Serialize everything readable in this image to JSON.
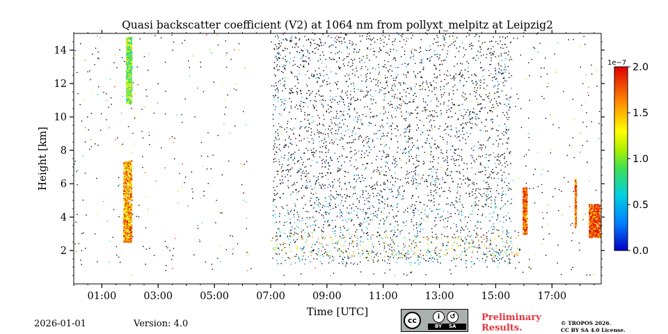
{
  "chart_data": {
    "type": "heatmap",
    "title": "Quasi backscatter coefficient (V2) at 1064 nm from pollyxt_melpitz at Leipzig2",
    "xlabel": "Time [UTC]",
    "ylabel": "Height [km]",
    "x_range_hours": [
      0.0,
      18.75
    ],
    "ylim": [
      0,
      15
    ],
    "x_tick_hours": [
      1,
      3,
      5,
      7,
      9,
      11,
      13,
      15,
      17
    ],
    "x_tick_labels": [
      "01:00",
      "03:00",
      "05:00",
      "07:00",
      "09:00",
      "11:00",
      "13:00",
      "15:00",
      "17:00"
    ],
    "y_ticks": [
      2,
      4,
      6,
      8,
      10,
      12,
      14
    ],
    "y_tick_labels": [
      "2",
      "4",
      "6",
      "8",
      "10",
      "12",
      "14"
    ],
    "colorbar": {
      "range": [
        0.0,
        2.0
      ],
      "ticks": [
        0.0,
        0.5,
        1.0,
        1.5,
        2.0
      ],
      "tick_labels": [
        "0.0",
        "0.5",
        "1.0",
        "1.5",
        "2.0"
      ],
      "exponent_label": "1e−7",
      "colormap": "jet"
    },
    "features": [
      {
        "name": "low-level cloud",
        "t_start": 1.75,
        "t_end": 2.05,
        "h_start": 2.5,
        "h_end": 7.4,
        "intensity": 1.55
      },
      {
        "name": "cirrus",
        "t_start": 1.85,
        "t_end": 2.05,
        "h_start": 10.8,
        "h_end": 14.8,
        "intensity": 1.0
      },
      {
        "name": "aerosol layer late afternoon",
        "t_start": 15.95,
        "t_end": 16.1,
        "h_start": 3.0,
        "h_end": 5.8,
        "intensity": 1.75
      },
      {
        "name": "aerosol streak",
        "t_start": 17.8,
        "t_end": 17.85,
        "h_start": 3.4,
        "h_end": 6.3,
        "intensity": 1.7
      },
      {
        "name": "aerosol streak 2",
        "t_start": 18.3,
        "t_end": 18.7,
        "h_start": 2.8,
        "h_end": 4.8,
        "intensity": 1.8
      }
    ]
  },
  "footer": {
    "date": "2026-01-01",
    "version": "Version: 4.0",
    "preliminary_line1": "Preliminary",
    "preliminary_line2": "Results.",
    "copyright_line1": "© TROPOS 2026.",
    "copyright_line2": "CC BY SA 4.0 License.",
    "license_cc": "cc",
    "license_by": "BY",
    "license_sa": "SA"
  }
}
